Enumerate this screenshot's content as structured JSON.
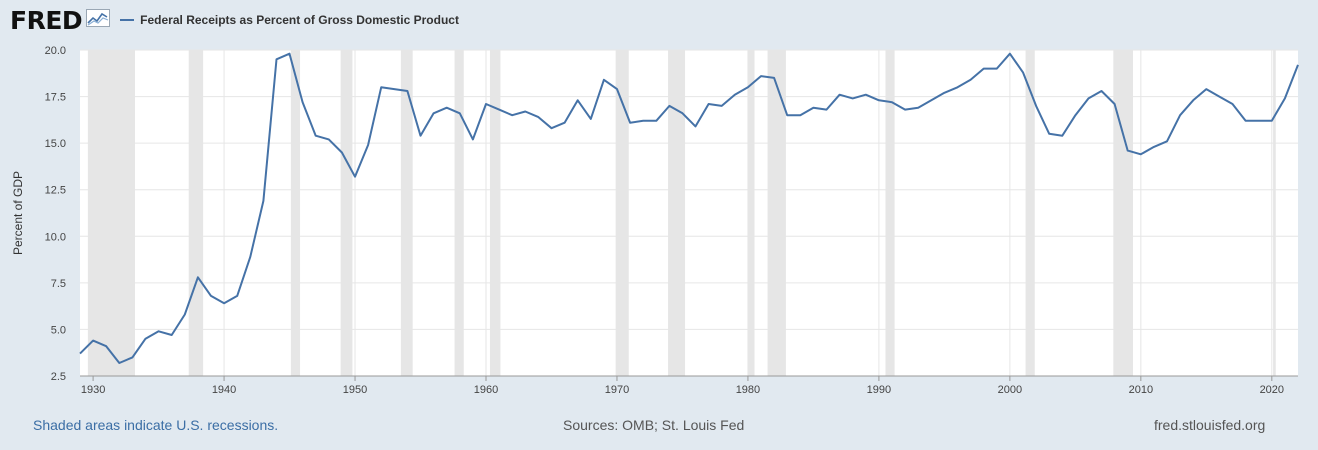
{
  "header": {
    "logo": "FRED",
    "logo_icon": "trend-line-icon"
  },
  "footer": {
    "recessions_note": "Shaded areas indicate U.S. recessions.",
    "sources": "Sources: OMB; St. Louis Fed",
    "site": "fred.stlouisfed.org"
  },
  "colors": {
    "series": "#4572a7",
    "recession": "#e6e6e6",
    "background": "#e1e9f0",
    "plot": "#ffffff"
  },
  "chart_data": {
    "type": "line",
    "ylabel": "Percent of GDP",
    "xlim": [
      1929,
      2022
    ],
    "ylim": [
      2.5,
      20.0
    ],
    "x_ticks": [
      1930,
      1940,
      1950,
      1960,
      1970,
      1980,
      1990,
      2000,
      2010,
      2020
    ],
    "y_ticks": [
      2.5,
      5.0,
      7.5,
      10.0,
      12.5,
      15.0,
      17.5,
      20.0
    ],
    "grid": true,
    "legend_position": "top-left",
    "recessions": [
      [
        1929.6,
        1933.2
      ],
      [
        1937.3,
        1938.4
      ],
      [
        1945.1,
        1945.8
      ],
      [
        1948.9,
        1949.8
      ],
      [
        1953.5,
        1954.4
      ],
      [
        1957.6,
        1958.3
      ],
      [
        1960.3,
        1961.1
      ],
      [
        1969.9,
        1970.9
      ],
      [
        1973.9,
        1975.2
      ],
      [
        1980.0,
        1980.5
      ],
      [
        1981.5,
        1982.9
      ],
      [
        1990.5,
        1991.2
      ],
      [
        2001.2,
        2001.9
      ],
      [
        2007.9,
        2009.4
      ],
      [
        2020.1,
        2020.3
      ]
    ],
    "series": [
      {
        "name": "Federal Receipts as Percent of Gross Domestic Product",
        "x": [
          1929,
          1930,
          1931,
          1932,
          1933,
          1934,
          1935,
          1936,
          1937,
          1938,
          1939,
          1940,
          1941,
          1942,
          1943,
          1944,
          1945,
          1946,
          1947,
          1948,
          1949,
          1950,
          1951,
          1952,
          1953,
          1954,
          1955,
          1956,
          1957,
          1958,
          1959,
          1960,
          1961,
          1962,
          1963,
          1964,
          1965,
          1966,
          1967,
          1968,
          1969,
          1970,
          1971,
          1972,
          1973,
          1974,
          1975,
          1976,
          1977,
          1978,
          1979,
          1980,
          1981,
          1982,
          1983,
          1984,
          1985,
          1986,
          1987,
          1988,
          1989,
          1990,
          1991,
          1992,
          1993,
          1994,
          1995,
          1996,
          1997,
          1998,
          1999,
          2000,
          2001,
          2002,
          2003,
          2004,
          2005,
          2006,
          2007,
          2008,
          2009,
          2010,
          2011,
          2012,
          2013,
          2014,
          2015,
          2016,
          2017,
          2018,
          2019,
          2020,
          2021,
          2022
        ],
        "y": [
          3.7,
          4.4,
          4.1,
          3.2,
          3.5,
          4.5,
          4.9,
          4.7,
          5.8,
          7.8,
          6.8,
          6.4,
          6.8,
          8.9,
          11.9,
          19.5,
          19.8,
          17.2,
          15.4,
          15.2,
          14.5,
          13.2,
          14.9,
          18.0,
          17.9,
          17.8,
          15.4,
          16.6,
          16.9,
          16.6,
          15.2,
          17.1,
          16.8,
          16.5,
          16.7,
          16.4,
          15.8,
          16.1,
          17.3,
          16.3,
          18.4,
          17.9,
          16.1,
          16.2,
          16.2,
          17.0,
          16.6,
          15.9,
          17.1,
          17.0,
          17.6,
          18.0,
          18.6,
          18.5,
          16.5,
          16.5,
          16.9,
          16.8,
          17.6,
          17.4,
          17.6,
          17.3,
          17.2,
          16.8,
          16.9,
          17.3,
          17.7,
          18.0,
          18.4,
          19.0,
          19.0,
          19.8,
          18.8,
          17.0,
          15.5,
          15.4,
          16.5,
          17.4,
          17.8,
          17.1,
          14.6,
          14.4,
          14.8,
          15.1,
          16.5,
          17.3,
          17.9,
          17.5,
          17.1,
          16.2,
          16.2,
          16.2,
          17.4,
          19.2
        ]
      }
    ]
  }
}
